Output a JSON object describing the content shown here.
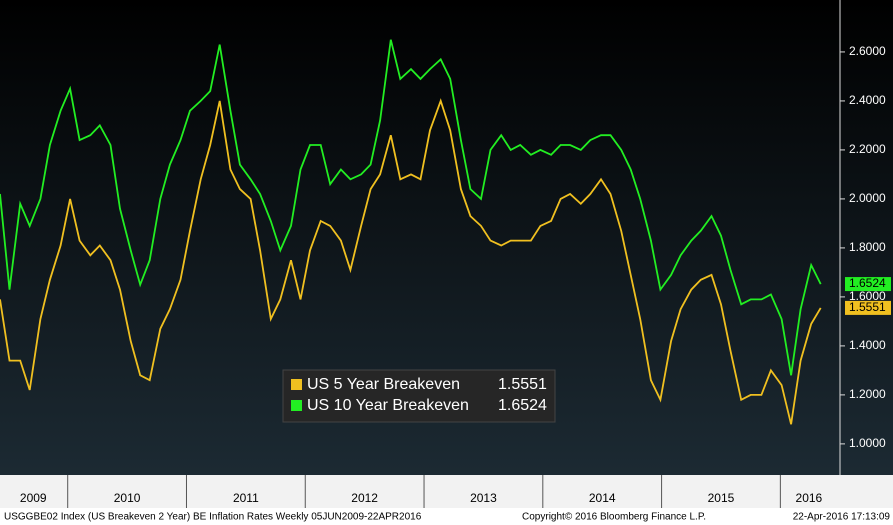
{
  "chart_data": {
    "type": "line",
    "footer_left": "USGGBE02 Index (US Breakeven 2 Year) BE Inflation Rates  Weekly 05JUN2009-22APR2016",
    "footer_center": "Copyright© 2016 Bloomberg Finance L.P.",
    "footer_right": "22-Apr-2016 17:13:09",
    "x": [
      2009.43,
      2009.51,
      2009.6,
      2009.68,
      2009.77,
      2009.85,
      2009.94,
      2010.02,
      2010.1,
      2010.19,
      2010.27,
      2010.36,
      2010.44,
      2010.53,
      2010.61,
      2010.69,
      2010.78,
      2010.86,
      2010.95,
      2011.03,
      2011.12,
      2011.2,
      2011.28,
      2011.37,
      2011.45,
      2011.54,
      2011.62,
      2011.71,
      2011.79,
      2011.88,
      2011.96,
      2012.04,
      2012.13,
      2012.21,
      2012.3,
      2012.38,
      2012.47,
      2012.55,
      2012.63,
      2012.72,
      2012.8,
      2012.89,
      2012.97,
      2013.05,
      2013.14,
      2013.22,
      2013.31,
      2013.39,
      2013.48,
      2013.56,
      2013.65,
      2013.73,
      2013.81,
      2013.9,
      2013.98,
      2014.07,
      2014.15,
      2014.23,
      2014.32,
      2014.4,
      2014.49,
      2014.57,
      2014.66,
      2014.74,
      2014.82,
      2014.91,
      2014.99,
      2015.08,
      2015.16,
      2015.25,
      2015.33,
      2015.42,
      2015.5,
      2015.58,
      2015.67,
      2015.75,
      2015.84,
      2015.92,
      2016.01,
      2016.09,
      2016.17,
      2016.26,
      2016.34
    ],
    "series": [
      {
        "name": "US 5 Year Breakeven",
        "color": "#f0c020",
        "last_label": "1.5551",
        "values": [
          1.59,
          1.34,
          1.34,
          1.22,
          1.51,
          1.67,
          1.81,
          2.0,
          1.83,
          1.77,
          1.81,
          1.75,
          1.63,
          1.42,
          1.28,
          1.26,
          1.47,
          1.55,
          1.67,
          1.87,
          2.08,
          2.22,
          2.4,
          2.12,
          2.04,
          2.0,
          1.79,
          1.51,
          1.59,
          1.75,
          1.59,
          1.79,
          1.91,
          1.89,
          1.83,
          1.71,
          1.89,
          2.04,
          2.1,
          2.26,
          2.08,
          2.1,
          2.08,
          2.28,
          2.4,
          2.28,
          2.04,
          1.93,
          1.89,
          1.83,
          1.81,
          1.83,
          1.83,
          1.83,
          1.89,
          1.91,
          2.0,
          2.02,
          1.98,
          2.02,
          2.08,
          2.02,
          1.87,
          1.69,
          1.51,
          1.26,
          1.18,
          1.42,
          1.55,
          1.63,
          1.67,
          1.69,
          1.57,
          1.38,
          1.18,
          1.2,
          1.2,
          1.3,
          1.24,
          1.08,
          1.34,
          1.49,
          1.5551
        ]
      },
      {
        "name": "US 10 Year Breakeven",
        "color": "#22ee22",
        "last_label": "1.6524",
        "values": [
          2.02,
          1.63,
          1.98,
          1.89,
          2.0,
          2.22,
          2.36,
          2.45,
          2.24,
          2.26,
          2.3,
          2.22,
          1.96,
          1.79,
          1.65,
          1.75,
          2.0,
          2.14,
          2.24,
          2.36,
          2.4,
          2.44,
          2.63,
          2.36,
          2.14,
          2.08,
          2.02,
          1.91,
          1.79,
          1.89,
          2.12,
          2.22,
          2.22,
          2.06,
          2.12,
          2.08,
          2.1,
          2.14,
          2.32,
          2.65,
          2.49,
          2.53,
          2.49,
          2.53,
          2.57,
          2.49,
          2.24,
          2.04,
          2.0,
          2.2,
          2.26,
          2.2,
          2.22,
          2.18,
          2.2,
          2.18,
          2.22,
          2.22,
          2.2,
          2.24,
          2.26,
          2.26,
          2.2,
          2.12,
          2.0,
          1.83,
          1.63,
          1.69,
          1.77,
          1.83,
          1.87,
          1.93,
          1.85,
          1.71,
          1.57,
          1.59,
          1.59,
          1.61,
          1.51,
          1.28,
          1.55,
          1.73,
          1.6524
        ]
      }
    ],
    "xlim": [
      2009.43,
      2016.46
    ],
    "xticks": [
      2010,
      2011,
      2012,
      2013,
      2014,
      2015,
      2016
    ],
    "x_labels": [
      {
        "value": 2009.71,
        "label": "2009"
      },
      {
        "value": 2010.5,
        "label": "2010"
      },
      {
        "value": 2011.5,
        "label": "2011"
      },
      {
        "value": 2012.5,
        "label": "2012"
      },
      {
        "value": 2013.5,
        "label": "2013"
      },
      {
        "value": 2014.5,
        "label": "2014"
      },
      {
        "value": 2015.5,
        "label": "2015"
      },
      {
        "value": 2016.24,
        "label": "2016"
      }
    ],
    "ylim": [
      0.873,
      2.812
    ],
    "yticks": [
      {
        "value": 1.0,
        "label": "1.0000"
      },
      {
        "value": 1.2,
        "label": "1.2000"
      },
      {
        "value": 1.4,
        "label": "1.4000"
      },
      {
        "value": 1.6,
        "label": "1.6000"
      },
      {
        "value": 1.8,
        "label": "1.8000"
      },
      {
        "value": 2.0,
        "label": "2.0000"
      },
      {
        "value": 2.2,
        "label": "2.2000"
      },
      {
        "value": 2.4,
        "label": "2.4000"
      },
      {
        "value": 2.6,
        "label": "2.6000"
      }
    ],
    "legend": "bottom-center"
  }
}
